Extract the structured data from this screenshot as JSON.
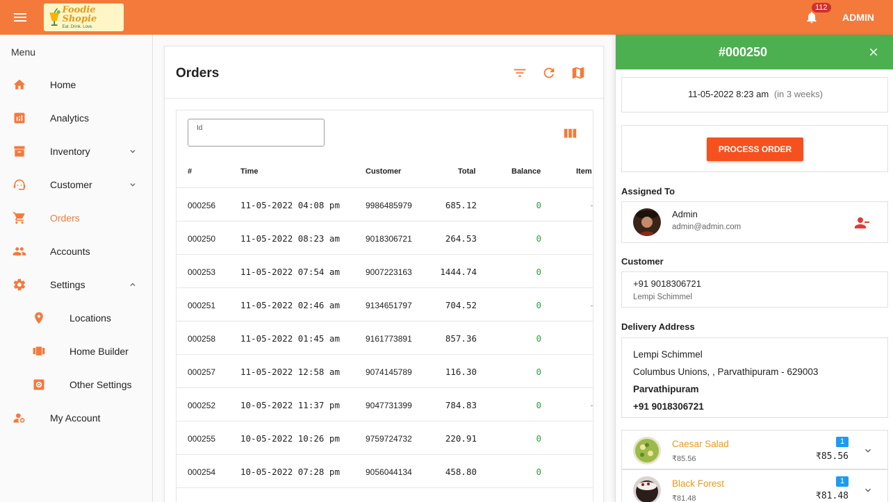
{
  "app": {
    "logo_name": "Foodie Shopie",
    "logo_tagline": "Eat. Drink. Love.",
    "notification_count": "112",
    "user_label": "ADMIN",
    "accent_color": "#f47a3c"
  },
  "sidebar": {
    "title": "Menu",
    "items": [
      {
        "label": "Home",
        "icon": "home-icon"
      },
      {
        "label": "Analytics",
        "icon": "analytics-icon"
      },
      {
        "label": "Inventory",
        "icon": "archive-icon"
      },
      {
        "label": "Customer",
        "icon": "support-agent-icon"
      },
      {
        "label": "Orders",
        "icon": "cart-icon"
      },
      {
        "label": "Accounts",
        "icon": "people-icon"
      },
      {
        "label": "Settings",
        "icon": "gear-icon"
      },
      {
        "label": "Locations",
        "icon": "location-pin-icon"
      },
      {
        "label": "Home Builder",
        "icon": "carousel-icon"
      },
      {
        "label": "Other Settings",
        "icon": "settings-box-icon"
      },
      {
        "label": "My Account",
        "icon": "account-settings-icon"
      }
    ]
  },
  "orders": {
    "title": "Orders",
    "filter_label": "Id",
    "columns": [
      "#",
      "Time",
      "Customer",
      "Total",
      "Balance",
      "Item"
    ],
    "rows": [
      {
        "id": "000256",
        "time": "11-05-2022 04:08 pm",
        "customer": "9986485979",
        "total": "685.12",
        "balance": "0"
      },
      {
        "id": "000250",
        "time": "11-05-2022 08:23 am",
        "customer": "9018306721",
        "total": "264.53",
        "balance": "0"
      },
      {
        "id": "000253",
        "time": "11-05-2022 07:54 am",
        "customer": "9007223163",
        "total": "1444.74",
        "balance": "0"
      },
      {
        "id": "000251",
        "time": "11-05-2022 02:46 am",
        "customer": "9134651797",
        "total": "704.52",
        "balance": "0"
      },
      {
        "id": "000258",
        "time": "11-05-2022 01:45 am",
        "customer": "9161773891",
        "total": "857.36",
        "balance": "0"
      },
      {
        "id": "000257",
        "time": "11-05-2022 12:58 am",
        "customer": "9074145789",
        "total": "116.30",
        "balance": "0"
      },
      {
        "id": "000252",
        "time": "10-05-2022 11:37 pm",
        "customer": "9047731399",
        "total": "784.83",
        "balance": "0"
      },
      {
        "id": "000255",
        "time": "10-05-2022 10:26 pm",
        "customer": "9759724732",
        "total": "220.91",
        "balance": "0"
      },
      {
        "id": "000254",
        "time": "10-05-2022 07:28 pm",
        "customer": "9056044134",
        "total": "458.80",
        "balance": "0"
      }
    ]
  },
  "detail": {
    "order_number": "#000250",
    "datetime": "11-05-2022 8:23 am",
    "relative": "(in 3 weeks)",
    "process_label": "PROCESS ORDER",
    "assigned_title": "Assigned To",
    "assignee_name": "Admin",
    "assignee_email": "admin@admin.com",
    "customer_title": "Customer",
    "customer_phone": "+91 9018306721",
    "customer_name": "Lempi Schimmel",
    "delivery_title": "Delivery Address",
    "address_name": "Lempi Schimmel",
    "address_line": "Columbus Unions, , Parvathipuram - 629003",
    "address_city": "Parvathipuram",
    "address_phone": "+91 9018306721",
    "items": [
      {
        "name": "Caesar Salad",
        "unit_price": "₹85.56",
        "qty": "1",
        "total": "₹85.56"
      },
      {
        "name": "Black Forest",
        "unit_price": "₹81.48",
        "qty": "1",
        "total": "₹81.48"
      }
    ]
  }
}
